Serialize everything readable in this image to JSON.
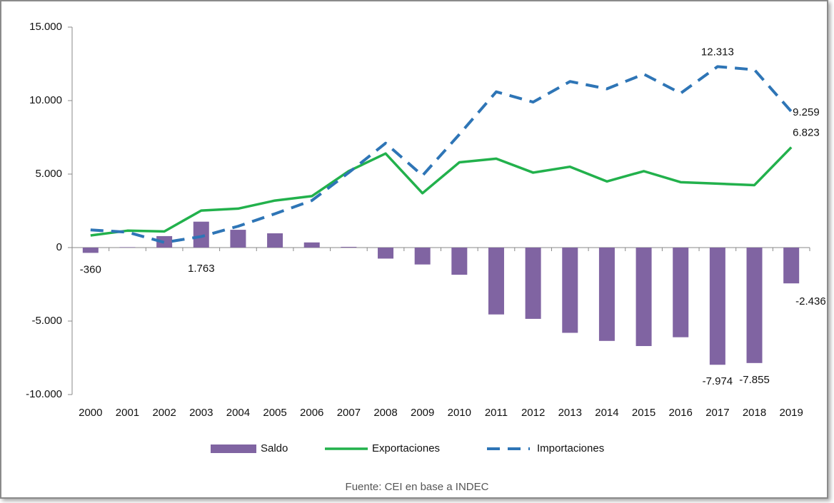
{
  "chart_data": {
    "type": "bar",
    "source": "Fuente: CEI en base a INDEC",
    "categories": [
      "2000",
      "2001",
      "2002",
      "2003",
      "2004",
      "2005",
      "2006",
      "2007",
      "2008",
      "2009",
      "2010",
      "2011",
      "2012",
      "2013",
      "2014",
      "2015",
      "2016",
      "2017",
      "2018",
      "2019"
    ],
    "series": [
      {
        "name": "Saldo",
        "type": "bar",
        "color": "#8064a2",
        "values": [
          -360,
          30,
          780,
          1763,
          1210,
          970,
          350,
          50,
          -750,
          -1150,
          -1850,
          -4550,
          -4850,
          -5800,
          -6350,
          -6700,
          -6100,
          -7974,
          -7855,
          -2436
        ],
        "value_labels": [
          "-360",
          null,
          null,
          "1.763",
          null,
          null,
          null,
          null,
          null,
          null,
          null,
          null,
          null,
          null,
          null,
          null,
          null,
          "-7.974",
          "-7.855",
          "-2.436"
        ]
      },
      {
        "name": "Exportaciones",
        "type": "line",
        "color": "#22b14c",
        "line_style": "solid",
        "values": [
          825,
          1150,
          1100,
          2520,
          2650,
          3200,
          3500,
          5200,
          6400,
          3700,
          5800,
          6050,
          5100,
          5500,
          4500,
          5200,
          4450,
          4350,
          4250,
          6823
        ],
        "value_labels": [
          null,
          null,
          null,
          null,
          null,
          null,
          null,
          null,
          null,
          null,
          null,
          null,
          null,
          null,
          null,
          null,
          null,
          null,
          null,
          "6.823"
        ]
      },
      {
        "name": "Importaciones",
        "type": "line",
        "color": "#2e75b6",
        "line_style": "dashed",
        "values": [
          1200,
          1050,
          350,
          750,
          1450,
          2300,
          3200,
          5100,
          7100,
          4900,
          7700,
          10600,
          9900,
          11300,
          10800,
          11800,
          10500,
          12313,
          12100,
          9259
        ],
        "value_labels": [
          null,
          null,
          null,
          null,
          null,
          null,
          null,
          null,
          null,
          null,
          null,
          null,
          null,
          null,
          null,
          null,
          null,
          "12.313",
          null,
          "9.259"
        ]
      }
    ],
    "ylim": [
      -10000,
      15000
    ],
    "yticks": [
      {
        "value": -10000,
        "label": "-10.000"
      },
      {
        "value": -5000,
        "label": "-5.000"
      },
      0,
      {
        "value": 5000,
        "label": "5.000"
      },
      {
        "value": 10000,
        "label": "10.000"
      },
      {
        "value": 15000,
        "label": "15.000"
      }
    ],
    "legend": "bottom"
  }
}
